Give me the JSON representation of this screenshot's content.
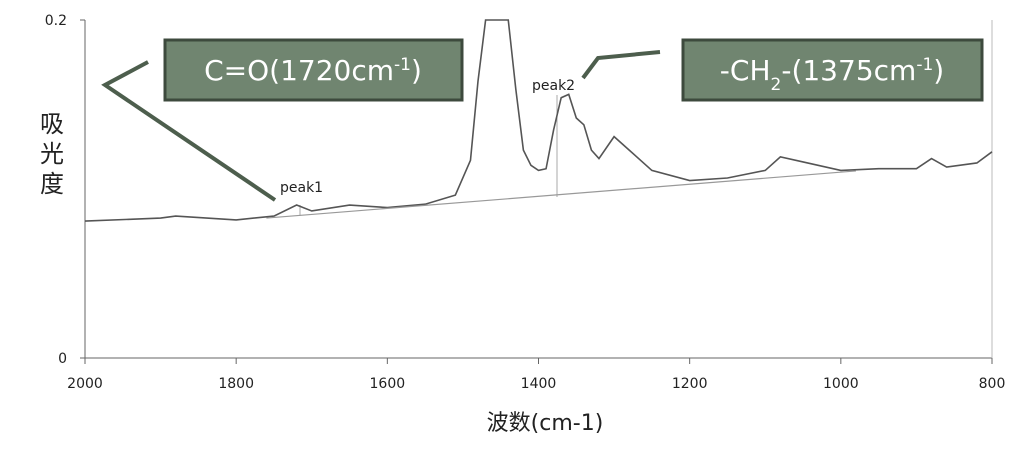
{
  "chart_data": {
    "type": "line",
    "x_label": "波数(cm-1)",
    "y_label": [
      "吸",
      "光",
      "度"
    ],
    "xlim": [
      2000,
      800
    ],
    "xticks": [
      2000,
      1800,
      1600,
      1400,
      1200,
      1000,
      800
    ],
    "ylim": [
      0,
      0.2
    ],
    "yticks": [
      0,
      0.2
    ],
    "series": [
      {
        "color": "#555555",
        "x": [
          2000,
          1900,
          1880,
          1800,
          1750,
          1720,
          1700,
          1650,
          1600,
          1550,
          1510,
          1490,
          1480,
          1470,
          1440,
          1430,
          1420,
          1410,
          1400,
          1390,
          1380,
          1370,
          1360,
          1350,
          1340,
          1330,
          1320,
          1300,
          1280,
          1250,
          1200,
          1150,
          1100,
          1080,
          1050,
          1000,
          950,
          900,
          880,
          860,
          820,
          800
        ],
        "values": [
          0.081,
          0.0828,
          0.084,
          0.0817,
          0.084,
          0.0905,
          0.087,
          0.0905,
          0.089,
          0.091,
          0.0964,
          0.117,
          0.164,
          0.2,
          0.2,
          0.159,
          0.123,
          0.114,
          0.111,
          0.112,
          0.135,
          0.154,
          0.156,
          0.142,
          0.138,
          0.123,
          0.118,
          0.131,
          0.123,
          0.111,
          0.105,
          0.1065,
          0.111,
          0.119,
          0.116,
          0.111,
          0.112,
          0.112,
          0.118,
          0.113,
          0.1154,
          0.122
        ]
      },
      {
        "color": "#999999",
        "x": [
          1760,
          980
        ],
        "values": [
          0.0828,
          0.1107
        ]
      }
    ],
    "peaks": [
      {
        "label": "peak1",
        "note": [
          {
            "text": "C=O(1720cm"
          },
          {
            "sup": "-1"
          },
          {
            "text": ")"
          }
        ]
      },
      {
        "label": "peak2",
        "note": [
          {
            "text": "-CH"
          },
          {
            "sub": "2"
          },
          {
            "text": "-(1375cm"
          },
          {
            "sup": "-1"
          },
          {
            "text": ")"
          }
        ]
      }
    ]
  }
}
